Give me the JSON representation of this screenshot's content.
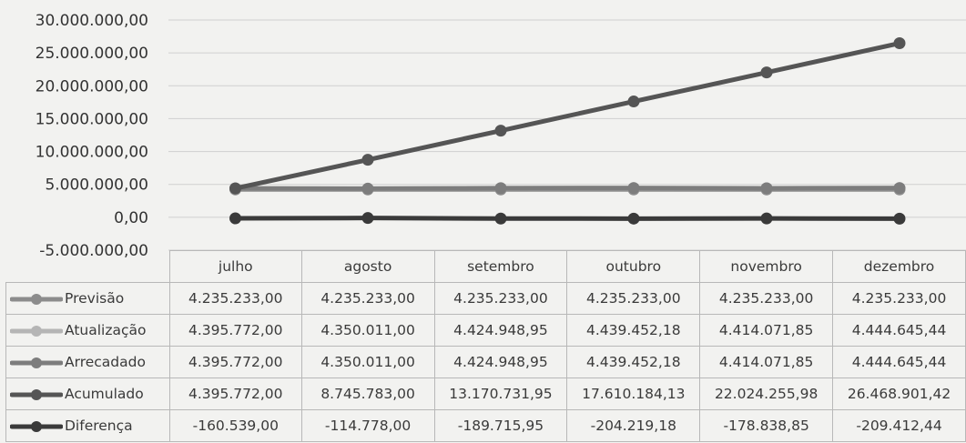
{
  "chart_data": {
    "type": "line",
    "categories": [
      "julho",
      "agosto",
      "setembro",
      "outubro",
      "novembro",
      "dezembro"
    ],
    "ylim": [
      -5000000,
      30000000
    ],
    "yticks": [
      30000000,
      25000000,
      20000000,
      15000000,
      10000000,
      5000000,
      0,
      -5000000
    ],
    "ytick_labels": [
      "30.000.000,00",
      "25.000.000,00",
      "20.000.000,00",
      "15.000.000,00",
      "10.000.000,00",
      "5.000.000,00",
      "0,00",
      "-5.000.000,00"
    ],
    "grid": true,
    "legend_placement": "data-table",
    "series": [
      {
        "name": "Previsão",
        "color": "#8c8c8c",
        "values": [
          4235233.0,
          4235233.0,
          4235233.0,
          4235233.0,
          4235233.0,
          4235233.0
        ],
        "labels": [
          "4.235.233,00",
          "4.235.233,00",
          "4.235.233,00",
          "4.235.233,00",
          "4.235.233,00",
          "4.235.233,00"
        ]
      },
      {
        "name": "Atualização",
        "color": "#b5b5b5",
        "values": [
          4395772.0,
          4350011.0,
          4424948.95,
          4439452.18,
          4414071.85,
          4444645.44
        ],
        "labels": [
          "4.395.772,00",
          "4.350.011,00",
          "4.424.948,95",
          "4.439.452,18",
          "4.414.071,85",
          "4.444.645,44"
        ]
      },
      {
        "name": "Arrecadado",
        "color": "#7d7d7d",
        "values": [
          4395772.0,
          4350011.0,
          4424948.95,
          4439452.18,
          4414071.85,
          4444645.44
        ],
        "labels": [
          "4.395.772,00",
          "4.350.011,00",
          "4.424.948,95",
          "4.439.452,18",
          "4.414.071,85",
          "4.444.645,44"
        ]
      },
      {
        "name": "Acumulado",
        "color": "#555555",
        "values": [
          4395772.0,
          8745783.0,
          13170731.95,
          17610184.13,
          22024255.98,
          26468901.42
        ],
        "labels": [
          "4.395.772,00",
          "8.745.783,00",
          "13.170.731,95",
          "17.610.184,13",
          "22.024.255,98",
          "26.468.901,42"
        ]
      },
      {
        "name": "Diferença",
        "color": "#3a3a3a",
        "values": [
          -160539.0,
          -114778.0,
          -189715.95,
          -204219.18,
          -178838.85,
          -209412.44
        ],
        "labels": [
          "-160.539,00",
          "-114.778,00",
          "-189.715,95",
          "-204.219,18",
          "-178.838,85",
          "-209.412,44"
        ]
      }
    ]
  }
}
